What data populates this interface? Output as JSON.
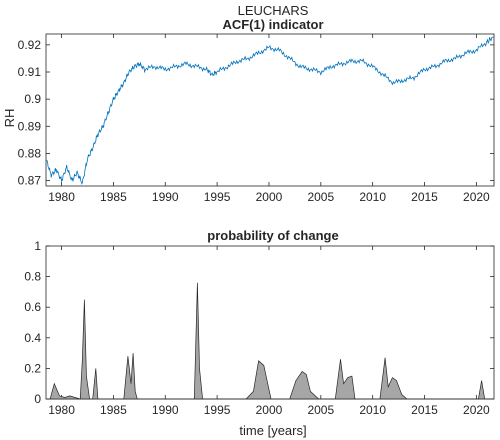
{
  "figure": {
    "station": "LEUCHARS"
  },
  "colors": {
    "line": "#0072BD",
    "area_fill": "#A6A6A6",
    "area_edge": "#262626",
    "axis": "#262626"
  },
  "chart_data": [
    {
      "type": "line",
      "title": "ACF(1) indicator",
      "ylabel": "RH",
      "xlabel": "",
      "xlim": [
        1978.5,
        2021.7
      ],
      "ylim": [
        0.868,
        0.924
      ],
      "xticks": [
        1980,
        1985,
        1990,
        1995,
        2000,
        2005,
        2010,
        2015,
        2020
      ],
      "yticks": [
        0.87,
        0.88,
        0.89,
        0.9,
        0.91,
        0.92
      ],
      "ytick_labels": [
        "0.87",
        "0.88",
        "0.89",
        "0.9",
        "0.91",
        "0.92"
      ],
      "grid": false,
      "series": [
        {
          "x": [
            1978.5,
            1979.0,
            1979.5,
            1980.0,
            1980.5,
            1981.0,
            1981.5,
            1982.0,
            1982.5,
            1983.0,
            1983.5,
            1984.0,
            1984.5,
            1985.0,
            1985.5,
            1986.0,
            1986.5,
            1987.0,
            1987.5,
            1988.0,
            1989.0,
            1990.0,
            1991.0,
            1992.0,
            1993.0,
            1994.0,
            1994.5,
            1995.0,
            1996.0,
            1997.0,
            1998.0,
            1999.0,
            2000.0,
            2001.0,
            2002.0,
            2003.0,
            2004.0,
            2005.0,
            2006.0,
            2007.0,
            2008.0,
            2009.0,
            2010.0,
            2011.0,
            2012.0,
            2013.0,
            2014.0,
            2015.0,
            2016.0,
            2017.0,
            2018.0,
            2019.0,
            2020.0,
            2021.0,
            2021.7
          ],
          "y": [
            0.878,
            0.872,
            0.874,
            0.87,
            0.875,
            0.87,
            0.873,
            0.869,
            0.878,
            0.882,
            0.887,
            0.89,
            0.895,
            0.9,
            0.903,
            0.906,
            0.91,
            0.912,
            0.913,
            0.911,
            0.912,
            0.911,
            0.912,
            0.913,
            0.912,
            0.911,
            0.909,
            0.91,
            0.912,
            0.914,
            0.915,
            0.917,
            0.919,
            0.918,
            0.915,
            0.912,
            0.911,
            0.91,
            0.912,
            0.913,
            0.914,
            0.914,
            0.912,
            0.909,
            0.906,
            0.907,
            0.908,
            0.911,
            0.912,
            0.914,
            0.915,
            0.917,
            0.918,
            0.921,
            0.923
          ]
        }
      ]
    },
    {
      "type": "area",
      "title": "probability of change",
      "xlabel": "time [years]",
      "ylabel": "",
      "xlim": [
        1978.5,
        2021.7
      ],
      "ylim": [
        0,
        1
      ],
      "xticks": [
        1980,
        1985,
        1990,
        1995,
        2000,
        2005,
        2010,
        2015,
        2020
      ],
      "yticks": [
        0,
        0.2,
        0.4,
        0.6,
        0.8,
        1
      ],
      "ytick_labels": [
        "0",
        "0.2",
        "0.4",
        "0.6",
        "0.8",
        "1"
      ],
      "grid": false,
      "series": [
        {
          "x": [
            1978.5,
            1978.9,
            1979.3,
            1979.8,
            1980.3,
            1980.8,
            1981.3,
            1981.8,
            1982.0,
            1982.2,
            1982.4,
            1982.7,
            1983.0,
            1983.3,
            1983.5,
            1983.8,
            1984.2,
            1986.0,
            1986.4,
            1986.7,
            1986.9,
            1987.1,
            1987.3,
            1987.7,
            1992.8,
            1993.1,
            1993.3,
            1993.6,
            1997.8,
            1998.5,
            1999.0,
            1999.5,
            2000.2,
            2002.0,
            2002.6,
            2003.2,
            2003.6,
            2004.0,
            2004.8,
            2006.4,
            2006.9,
            2007.2,
            2007.6,
            2008.0,
            2008.3,
            2008.7,
            2010.7,
            2011.2,
            2011.5,
            2011.9,
            2012.3,
            2012.8,
            2013.3,
            2019.7,
            2020.2,
            2020.5,
            2020.8,
            2021.7
          ],
          "y": [
            0.0,
            0.0,
            0.1,
            0.02,
            0.01,
            0.02,
            0.01,
            0.0,
            0.25,
            0.65,
            0.15,
            0.0,
            0.0,
            0.2,
            0.0,
            0.0,
            0.0,
            0.0,
            0.28,
            0.1,
            0.3,
            0.05,
            0.0,
            0.0,
            0.0,
            0.76,
            0.2,
            0.0,
            0.0,
            0.05,
            0.25,
            0.22,
            0.0,
            0.0,
            0.12,
            0.18,
            0.16,
            0.05,
            0.0,
            0.0,
            0.26,
            0.1,
            0.14,
            0.15,
            0.0,
            0.0,
            0.0,
            0.27,
            0.08,
            0.14,
            0.12,
            0.03,
            0.0,
            0.0,
            0.0,
            0.12,
            0.0,
            0.0
          ]
        }
      ]
    }
  ]
}
